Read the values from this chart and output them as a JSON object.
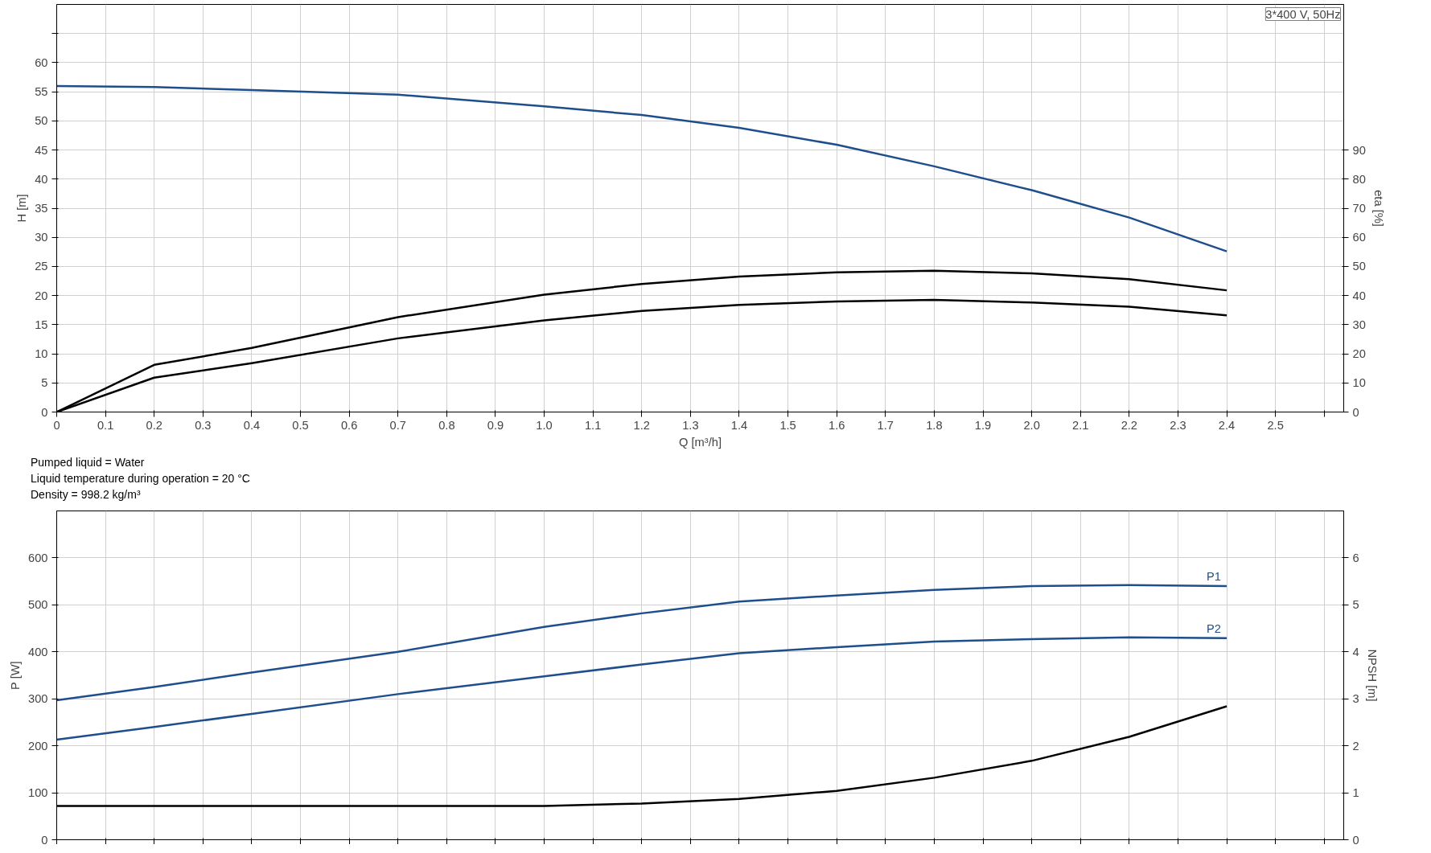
{
  "chart_data": [
    {
      "type": "line",
      "xlabel": "Q [m³/h]",
      "ylabel": "H [m]",
      "y2label": "eta [%]",
      "annotations": [
        "3*400 V, 50Hz"
      ],
      "xlim": [
        0,
        2.64
      ],
      "xticks": [
        0,
        0.1,
        0.2,
        0.3,
        0.4,
        0.5,
        0.6,
        0.7,
        0.8,
        0.9,
        {
          "value": 1,
          "label": "1.0"
        },
        1.1,
        1.2,
        1.3,
        1.4,
        1.5,
        1.6,
        1.7,
        1.8,
        1.9,
        {
          "value": 2,
          "label": "2.0"
        },
        2.1,
        2.2,
        2.3,
        2.4,
        2.5,
        {
          "value": 2.6,
          "label": null
        }
      ],
      "ylim": [
        0,
        70
      ],
      "yticks": [
        0,
        5,
        10,
        15,
        20,
        25,
        30,
        35,
        40,
        45,
        50,
        55,
        60,
        {
          "value": 65,
          "label": null
        }
      ],
      "y2lim": [
        0,
        140
      ],
      "y2ticks": [
        0,
        10,
        20,
        30,
        40,
        50,
        60,
        70,
        80,
        90
      ],
      "grid": true,
      "marker": "none",
      "line_style": "solid",
      "x": [
        0,
        0.2,
        0.4,
        0.7,
        1.0,
        1.2,
        1.4,
        1.6,
        1.8,
        2.0,
        2.2,
        2.4
      ],
      "series": [
        {
          "color": "#1f4e8c",
          "values": [
            56,
            55.8,
            55.3,
            54.5,
            52.5,
            51.0,
            48.8,
            45.9,
            42.2,
            38.1,
            33.4,
            27.6
          ]
        },
        {
          "color": "#000000",
          "axis": "y2",
          "values": [
            0,
            16.2,
            22,
            32.6,
            40.3,
            44,
            46.5,
            48,
            48.5,
            47.6,
            45.6,
            41.8
          ]
        },
        {
          "color": "#000000",
          "axis": "y2",
          "values": [
            0,
            11.8,
            16.8,
            25.3,
            31.5,
            34.7,
            36.8,
            38,
            38.5,
            37.6,
            36.2,
            33.2
          ]
        }
      ]
    },
    {
      "type": "line",
      "ylabel": "P [W]",
      "y2label": "NPSH [m]",
      "annotations": [
        "Pumped liquid = Water",
        "Liquid temperature during operation = 20 °C",
        "Density = 998.2 kg/m³"
      ],
      "xlim": [
        0,
        2.64
      ],
      "xticks": [
        0,
        0.1,
        0.2,
        0.3,
        0.4,
        0.5,
        0.6,
        0.7,
        0.8,
        0.9,
        1.0,
        1.1,
        1.2,
        1.3,
        1.4,
        1.5,
        1.6,
        1.7,
        1.8,
        1.9,
        2.0,
        2.1,
        2.2,
        2.3,
        2.4,
        2.5,
        2.6
      ],
      "ylim": [
        0,
        700
      ],
      "yticks": [
        0,
        100,
        200,
        300,
        400,
        500,
        600
      ],
      "y2lim": [
        0,
        7
      ],
      "y2ticks": [
        0,
        1,
        2,
        3,
        4,
        5,
        6
      ],
      "tick_labels": "y",
      "grid": true,
      "marker": "none",
      "line_style": "solid",
      "x": [
        0,
        0.2,
        0.4,
        0.7,
        1.0,
        1.2,
        1.4,
        1.6,
        1.8,
        2.0,
        2.2,
        2.4
      ],
      "series": [
        {
          "name": "P1",
          "color": "#1f4e8c",
          "values": [
            297,
            325,
            356,
            400,
            453,
            482,
            507,
            520,
            532,
            540,
            542,
            540
          ]
        },
        {
          "name": "P2",
          "color": "#1f4e8c",
          "values": [
            213,
            240,
            268,
            310,
            348,
            373,
            397,
            410,
            422,
            427,
            431,
            429
          ]
        },
        {
          "color": "#000000",
          "axis": "y2",
          "values": [
            0.72,
            0.72,
            0.72,
            0.72,
            0.72,
            0.77,
            0.87,
            1.04,
            1.32,
            1.68,
            2.19,
            2.84
          ]
        }
      ]
    }
  ]
}
